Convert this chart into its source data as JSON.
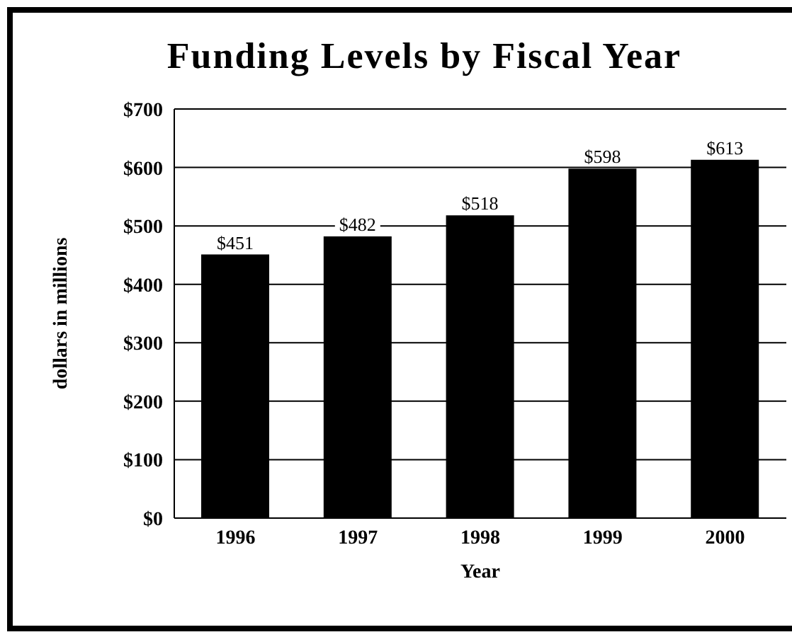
{
  "chart_data": {
    "type": "bar",
    "title": "Funding Levels by Fiscal Year",
    "xlabel": "Year",
    "ylabel": "dollars in millions",
    "categories": [
      "1996",
      "1997",
      "1998",
      "1999",
      "2000"
    ],
    "values": [
      451,
      482,
      518,
      598,
      613
    ],
    "color": "#000000",
    "value_labels": [
      "$451",
      "$482",
      "$518",
      "$598",
      "$613"
    ],
    "ylim": [
      0,
      700
    ],
    "yticks": [
      {
        "value": 0,
        "label": "$0"
      },
      {
        "value": 100,
        "label": "$100"
      },
      {
        "value": 200,
        "label": "$200"
      },
      {
        "value": 300,
        "label": "$300"
      },
      {
        "value": 400,
        "label": "$400"
      },
      {
        "value": 500,
        "label": "$500"
      },
      {
        "value": 600,
        "label": "$600"
      },
      {
        "value": 700,
        "label": "$700"
      }
    ],
    "grid": "y",
    "legend": false
  }
}
